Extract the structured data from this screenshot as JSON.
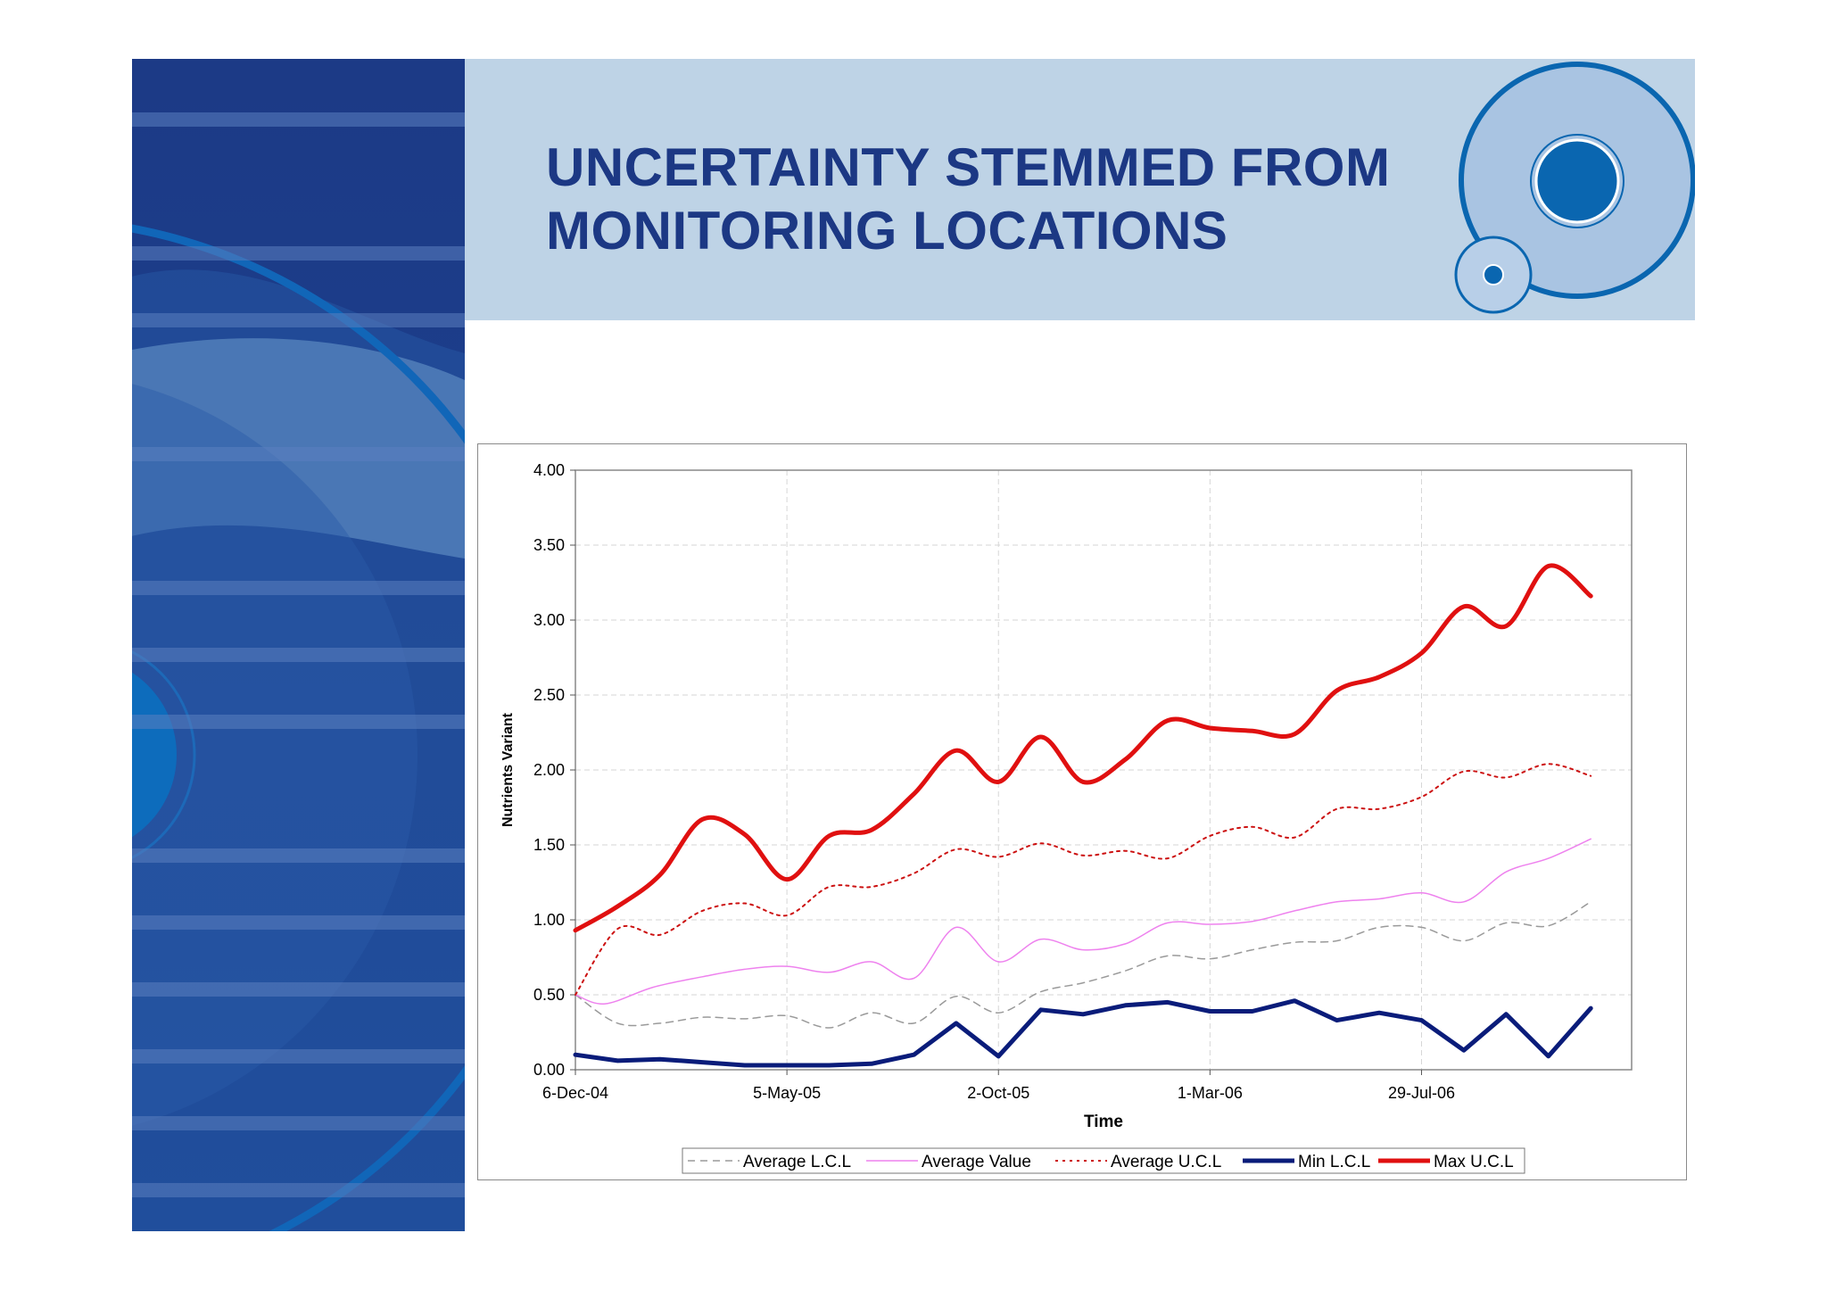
{
  "slide": {
    "title_line1": "UNCERTAINTY STEMMED FROM",
    "title_line2": "MONITORING LOCATIONS"
  },
  "colors": {
    "left_panel": "#1e3e8c",
    "header_band": "#bed3e6",
    "title": "#1c3884",
    "accent_circle": "#0066b0"
  },
  "chart_data": {
    "type": "line",
    "ylabel": "Nutrients Variant",
    "xlabel": "Time",
    "ylim": [
      0,
      4
    ],
    "yticks": [
      "0.00",
      "0.50",
      "1.00",
      "1.50",
      "2.00",
      "2.50",
      "3.00",
      "3.50",
      "4.00"
    ],
    "xticks": [
      "6-Dec-04",
      "5-May-05",
      "2-Oct-05",
      "1-Mar-06",
      "29-Jul-06"
    ],
    "x_range": [
      "2004-12-06",
      "2006-12-25"
    ],
    "grid": true,
    "legend_position": "bottom",
    "series": [
      {
        "name": "Average L.C.L",
        "color": "#9a9a9a",
        "style": "dashed",
        "points": [
          [
            "2004-12-06",
            0.5
          ],
          [
            "2005-01-05",
            0.31
          ],
          [
            "2005-02-04",
            0.31
          ],
          [
            "2005-03-06",
            0.35
          ],
          [
            "2005-04-05",
            0.34
          ],
          [
            "2005-05-05",
            0.36
          ],
          [
            "2005-06-04",
            0.28
          ],
          [
            "2005-07-04",
            0.38
          ],
          [
            "2005-08-03",
            0.31
          ],
          [
            "2005-09-02",
            0.49
          ],
          [
            "2005-10-02",
            0.38
          ],
          [
            "2005-11-01",
            0.52
          ],
          [
            "2005-12-01",
            0.58
          ],
          [
            "2005-12-31",
            0.66
          ],
          [
            "2006-01-30",
            0.76
          ],
          [
            "2006-03-01",
            0.74
          ],
          [
            "2006-03-31",
            0.8
          ],
          [
            "2006-04-30",
            0.85
          ],
          [
            "2006-05-30",
            0.86
          ],
          [
            "2006-06-29",
            0.95
          ],
          [
            "2006-07-29",
            0.95
          ],
          [
            "2006-08-28",
            0.86
          ],
          [
            "2006-09-27",
            0.98
          ],
          [
            "2006-10-27",
            0.96
          ],
          [
            "2006-11-26",
            1.12
          ]
        ]
      },
      {
        "name": "Average Value",
        "color": "#ee82ee",
        "style": "solid-thin",
        "points": [
          [
            "2004-12-06",
            0.5
          ],
          [
            "2004-12-27",
            0.44
          ],
          [
            "2005-01-30",
            0.55
          ],
          [
            "2005-03-06",
            0.62
          ],
          [
            "2005-04-05",
            0.67
          ],
          [
            "2005-05-05",
            0.69
          ],
          [
            "2005-06-04",
            0.65
          ],
          [
            "2005-07-04",
            0.72
          ],
          [
            "2005-08-03",
            0.61
          ],
          [
            "2005-09-02",
            0.95
          ],
          [
            "2005-10-02",
            0.72
          ],
          [
            "2005-11-01",
            0.87
          ],
          [
            "2005-12-01",
            0.8
          ],
          [
            "2005-12-31",
            0.84
          ],
          [
            "2006-01-30",
            0.98
          ],
          [
            "2006-03-01",
            0.97
          ],
          [
            "2006-03-31",
            0.99
          ],
          [
            "2006-04-30",
            1.06
          ],
          [
            "2006-05-30",
            1.12
          ],
          [
            "2006-06-29",
            1.14
          ],
          [
            "2006-07-29",
            1.18
          ],
          [
            "2006-08-28",
            1.12
          ],
          [
            "2006-09-27",
            1.32
          ],
          [
            "2006-10-27",
            1.41
          ],
          [
            "2006-11-26",
            1.54
          ]
        ]
      },
      {
        "name": "Average U.C.L",
        "color": "#cc1111",
        "style": "dotted",
        "points": [
          [
            "2004-12-06",
            0.5
          ],
          [
            "2005-01-05",
            0.94
          ],
          [
            "2005-02-04",
            0.9
          ],
          [
            "2005-03-06",
            1.06
          ],
          [
            "2005-04-05",
            1.11
          ],
          [
            "2005-05-05",
            1.03
          ],
          [
            "2005-06-04",
            1.22
          ],
          [
            "2005-07-04",
            1.22
          ],
          [
            "2005-08-03",
            1.31
          ],
          [
            "2005-09-02",
            1.47
          ],
          [
            "2005-10-02",
            1.42
          ],
          [
            "2005-11-01",
            1.51
          ],
          [
            "2005-12-01",
            1.43
          ],
          [
            "2005-12-31",
            1.46
          ],
          [
            "2006-01-30",
            1.41
          ],
          [
            "2006-03-01",
            1.56
          ],
          [
            "2006-03-31",
            1.62
          ],
          [
            "2006-04-30",
            1.55
          ],
          [
            "2006-05-30",
            1.74
          ],
          [
            "2006-06-29",
            1.74
          ],
          [
            "2006-07-29",
            1.82
          ],
          [
            "2006-08-28",
            1.99
          ],
          [
            "2006-09-27",
            1.95
          ],
          [
            "2006-10-27",
            2.04
          ],
          [
            "2006-11-26",
            1.96
          ]
        ]
      },
      {
        "name": "Min L.C.L",
        "color": "#0a1c7a",
        "style": "solid-thick",
        "points": [
          [
            "2004-12-06",
            0.1
          ],
          [
            "2005-01-05",
            0.06
          ],
          [
            "2005-02-04",
            0.07
          ],
          [
            "2005-03-06",
            0.05
          ],
          [
            "2005-04-05",
            0.03
          ],
          [
            "2005-05-05",
            0.03
          ],
          [
            "2005-06-04",
            0.03
          ],
          [
            "2005-07-04",
            0.04
          ],
          [
            "2005-08-03",
            0.1
          ],
          [
            "2005-09-02",
            0.31
          ],
          [
            "2005-10-02",
            0.09
          ],
          [
            "2005-11-01",
            0.4
          ],
          [
            "2005-12-01",
            0.37
          ],
          [
            "2005-12-31",
            0.43
          ],
          [
            "2006-01-30",
            0.45
          ],
          [
            "2006-03-01",
            0.39
          ],
          [
            "2006-03-31",
            0.39
          ],
          [
            "2006-04-30",
            0.46
          ],
          [
            "2006-05-30",
            0.33
          ],
          [
            "2006-06-29",
            0.38
          ],
          [
            "2006-07-29",
            0.33
          ],
          [
            "2006-08-28",
            0.13
          ],
          [
            "2006-09-27",
            0.37
          ],
          [
            "2006-10-27",
            0.09
          ],
          [
            "2006-11-26",
            0.41
          ]
        ]
      },
      {
        "name": "Max U.C.L",
        "color": "#e01010",
        "style": "solid-thick",
        "points": [
          [
            "2004-12-06",
            0.93
          ],
          [
            "2005-01-05",
            1.09
          ],
          [
            "2005-02-04",
            1.3
          ],
          [
            "2005-03-06",
            1.67
          ],
          [
            "2005-04-05",
            1.57
          ],
          [
            "2005-05-05",
            1.27
          ],
          [
            "2005-06-04",
            1.56
          ],
          [
            "2005-07-04",
            1.6
          ],
          [
            "2005-08-03",
            1.84
          ],
          [
            "2005-09-02",
            2.13
          ],
          [
            "2005-10-02",
            1.92
          ],
          [
            "2005-11-01",
            2.22
          ],
          [
            "2005-12-01",
            1.92
          ],
          [
            "2005-12-31",
            2.07
          ],
          [
            "2006-01-30",
            2.33
          ],
          [
            "2006-03-01",
            2.28
          ],
          [
            "2006-03-31",
            2.26
          ],
          [
            "2006-04-30",
            2.24
          ],
          [
            "2006-05-30",
            2.53
          ],
          [
            "2006-06-29",
            2.62
          ],
          [
            "2006-07-29",
            2.78
          ],
          [
            "2006-08-28",
            3.09
          ],
          [
            "2006-09-27",
            2.96
          ],
          [
            "2006-10-27",
            3.36
          ],
          [
            "2006-11-26",
            3.16
          ]
        ]
      }
    ]
  }
}
